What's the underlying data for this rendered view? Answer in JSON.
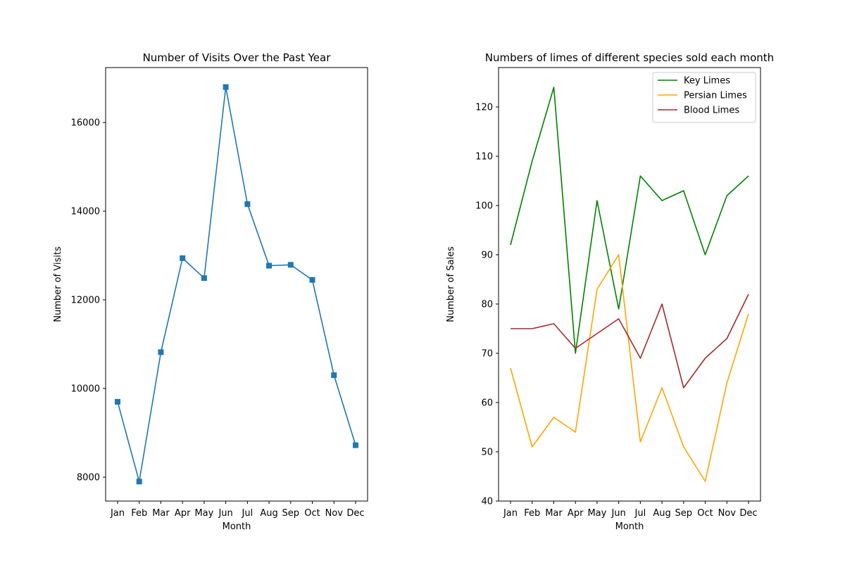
{
  "chart_data": [
    {
      "type": "line",
      "title": "Number of Visits Over the Past Year",
      "xlabel": "Month",
      "ylabel": "Number of Visits",
      "categories": [
        "Jan",
        "Feb",
        "Mar",
        "Apr",
        "May",
        "Jun",
        "Jul",
        "Aug",
        "Sep",
        "Oct",
        "Nov",
        "Dec"
      ],
      "series": [
        {
          "values": [
            9700,
            7900,
            10820,
            12940,
            12490,
            16800,
            14160,
            12770,
            12790,
            12450,
            10300,
            8720
          ],
          "color": "#1f77b4",
          "marker": "square"
        }
      ],
      "ylim": [
        7460,
        17240
      ],
      "yticks": [
        8000,
        10000,
        12000,
        14000,
        16000
      ],
      "grid": false,
      "legend": false
    },
    {
      "type": "line",
      "title": "Numbers of limes of different species sold each month",
      "xlabel": "Month",
      "ylabel": "Number of Sales",
      "categories": [
        "Jan",
        "Feb",
        "Mar",
        "Apr",
        "May",
        "Jun",
        "Jul",
        "Aug",
        "Sep",
        "Oct",
        "Nov",
        "Dec"
      ],
      "series": [
        {
          "name": "Key Limes",
          "values": [
            92,
            109,
            124,
            70,
            101,
            79,
            106,
            101,
            103,
            90,
            102,
            106
          ],
          "color": "#008000"
        },
        {
          "name": "Persian Limes",
          "values": [
            67,
            51,
            57,
            54,
            83,
            90,
            52,
            63,
            51,
            44,
            64,
            78
          ],
          "color": "#ffa500"
        },
        {
          "name": "Blood Limes",
          "values": [
            75,
            75,
            76,
            71,
            74,
            77,
            69,
            80,
            63,
            69,
            73,
            82
          ],
          "color": "#a52a2a"
        }
      ],
      "ylim": [
        40,
        128
      ],
      "yticks": [
        40,
        50,
        60,
        70,
        80,
        90,
        100,
        110,
        120
      ],
      "grid": false,
      "legend": "top-right"
    }
  ]
}
